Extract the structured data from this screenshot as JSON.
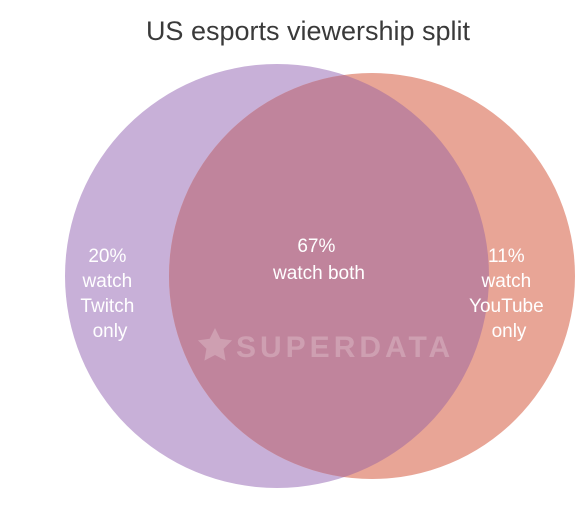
{
  "chart_data": {
    "type": "venn",
    "title": "US esports viewership split",
    "sets": [
      {
        "name": "Twitch",
        "only_label_lines": [
          "20%",
          "watch",
          "Twitch",
          "only"
        ],
        "only_value": 20,
        "color": "#c8b0d8"
      },
      {
        "name": "YouTube",
        "only_label_lines": [
          "11%",
          "watch",
          "YouTube",
          "only"
        ],
        "only_value": 11,
        "color": "#e8a596"
      }
    ],
    "overlap": {
      "label_lines": [
        "67%",
        "watch both"
      ],
      "value": 67,
      "color": "#c0849c"
    },
    "unit": "%"
  },
  "watermark": {
    "text": "SUPERDATA",
    "icon": "star-icon"
  }
}
